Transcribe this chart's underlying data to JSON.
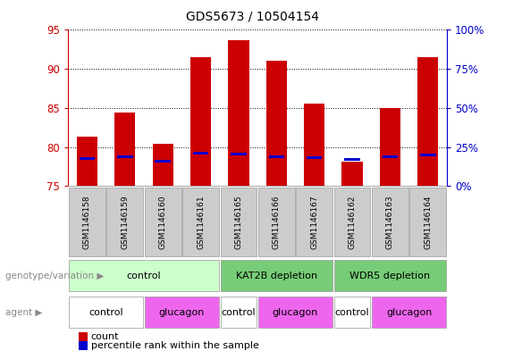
{
  "title": "GDS5673 / 10504154",
  "samples": [
    "GSM1146158",
    "GSM1146159",
    "GSM1146160",
    "GSM1146161",
    "GSM1146165",
    "GSM1146166",
    "GSM1146167",
    "GSM1146162",
    "GSM1146163",
    "GSM1146164"
  ],
  "count_top": [
    81.3,
    84.4,
    80.4,
    91.5,
    93.7,
    91.0,
    85.5,
    78.1,
    85.0,
    91.5
  ],
  "count_bottom": [
    75.0,
    75.0,
    75.0,
    75.0,
    75.0,
    75.0,
    75.0,
    75.0,
    75.0,
    75.0
  ],
  "percentile_val": [
    78.5,
    78.7,
    78.2,
    79.2,
    79.1,
    78.7,
    78.6,
    78.4,
    78.8,
    79.0
  ],
  "ylim_left": [
    75,
    95
  ],
  "ylim_right": [
    0,
    100
  ],
  "yticks_left": [
    75,
    80,
    85,
    90,
    95
  ],
  "yticks_right": [
    0,
    25,
    50,
    75,
    100
  ],
  "ytick_right_labels": [
    "0%",
    "25%",
    "50%",
    "75%",
    "100%"
  ],
  "bar_color": "#cc0000",
  "blue_color": "#0000cc",
  "left_axis_color": "#cc0000",
  "right_axis_color": "#0000cc",
  "genotype_boundaries": [
    [
      0,
      4,
      "control",
      "#ccffcc"
    ],
    [
      4,
      7,
      "KAT2B depletion",
      "#77cc77"
    ],
    [
      7,
      10,
      "WDR5 depletion",
      "#77cc77"
    ]
  ],
  "agent_boundaries": [
    [
      0,
      2,
      "control",
      "#ffffff"
    ],
    [
      2,
      4,
      "glucagon",
      "#ee66ee"
    ],
    [
      4,
      5,
      "control",
      "#ffffff"
    ],
    [
      5,
      7,
      "glucagon",
      "#ee66ee"
    ],
    [
      7,
      8,
      "control",
      "#ffffff"
    ],
    [
      8,
      10,
      "glucagon",
      "#ee66ee"
    ]
  ],
  "legend_count_label": "count",
  "legend_percentile_label": "percentile rank within the sample",
  "genotype_label": "genotype/variation",
  "agent_label": "agent",
  "sample_box_color": "#cccccc",
  "bar_width": 0.55
}
